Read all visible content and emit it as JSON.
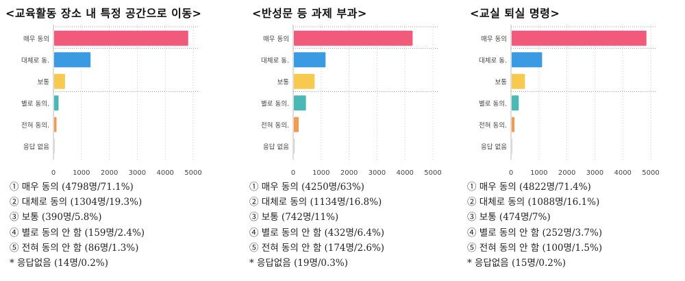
{
  "panels": [
    {
      "title": "<교육활동 장소 내 특정 공간으로 이동>",
      "notes": [
        "① 매우 동의 (4798명/71.1%)",
        "② 대체로 동의 (1304명/19.3%)",
        "③ 보통 (390명/5.8%)",
        "④ 별로 동의 안 함 (159명/2.4%)",
        "⑤ 전혀 동의 안 함 (86명/1.3%)",
        "* 응답없음 (14명/0.2%)"
      ]
    },
    {
      "title": "<반성문 등 과제 부과>",
      "notes": [
        "① 매우 동의 (4250명/63%)",
        "② 대체로 동의 (1134명/16.8%)",
        "③ 보통 (742명/11%)",
        "④ 별로 동의 안 함 (432명/6.4%)",
        "⑤ 전혀 동의 안 함 (174명/2.6%)",
        "* 응답없음 (19명/0.3%)"
      ]
    },
    {
      "title": "<교실 퇴실 명령>",
      "notes": [
        "① 매우 동의 (4822명/71.4%)",
        "② 대체로 동의 (1088명/16.1%)",
        "③ 보통 (474명/7%)",
        "④ 별로 동의 안 함 (252명/3.7%)",
        "⑤ 전혀 동의 안 함 (100명/1.5%)",
        "* 응답없음 (15명/0.2%)"
      ]
    }
  ],
  "chart_data": [
    {
      "type": "bar",
      "orientation": "horizontal",
      "title": "<교육활동 장소 내 특정 공간으로 이동>",
      "categories": [
        "매우 동의",
        "대체로 동.",
        "보통",
        "별로 동의.",
        "전혀 동의.",
        "응답 없음"
      ],
      "values": [
        4798,
        1304,
        390,
        159,
        86,
        14
      ],
      "colors": [
        "#f25a7c",
        "#3a9be3",
        "#f7c94f",
        "#4ab8b5",
        "#f09a52",
        "#bbbbbb"
      ],
      "xticks": [
        "0",
        "1000",
        "2000",
        "3000",
        "4000",
        "5000"
      ],
      "xlim": [
        0,
        5000
      ]
    },
    {
      "type": "bar",
      "orientation": "horizontal",
      "title": "<반성문 등 과제 부과>",
      "categories": [
        "매우 동의",
        "대체로 동.",
        "보통",
        "별로 동의.",
        "전혀 동의.",
        "응답 없음"
      ],
      "values": [
        4250,
        1134,
        742,
        432,
        174,
        19
      ],
      "colors": [
        "#f25a7c",
        "#3a9be3",
        "#f7c94f",
        "#4ab8b5",
        "#f09a52",
        "#bbbbbb"
      ],
      "xticks": [
        "0",
        "1000",
        "2000",
        "3000",
        "4000",
        "5000"
      ],
      "xlim": [
        0,
        5000
      ]
    },
    {
      "type": "bar",
      "orientation": "horizontal",
      "title": "<교실 퇴실 명령>",
      "categories": [
        "매우 동의",
        "대체로 동.",
        "보통",
        "별로 동의.",
        "전혀 동의.",
        "응답 없음"
      ],
      "values": [
        4822,
        1088,
        474,
        252,
        100,
        15
      ],
      "colors": [
        "#f25a7c",
        "#3a9be3",
        "#f7c94f",
        "#4ab8b5",
        "#f09a52",
        "#bbbbbb"
      ],
      "xticks": [
        "0",
        "1000",
        "2000",
        "3000",
        "4000",
        "5000"
      ],
      "xlim": [
        0,
        5000
      ]
    }
  ]
}
